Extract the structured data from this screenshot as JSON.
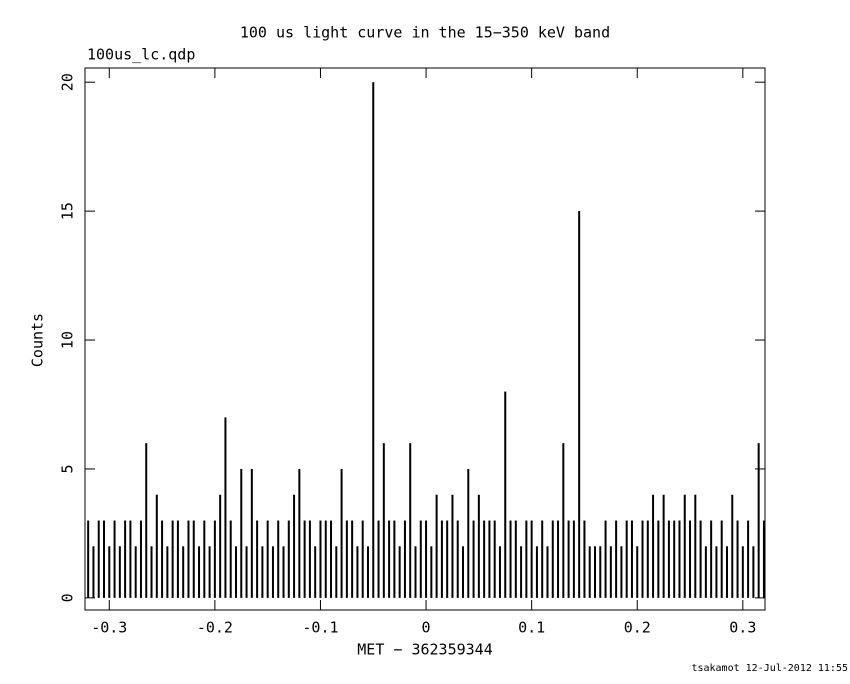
{
  "chart_data": {
    "type": "bar",
    "title": "100 us light curve in the 15−350 keV band",
    "subtitle": "100us_lc.qdp",
    "x_label": "MET − 362359344",
    "y_label": "Counts",
    "footer": "tsakamot 12-Jul-2012 11:55",
    "color": "#000000",
    "xlim": [
      -0.323,
      0.321
    ],
    "ylim": [
      -0.47,
      20.55
    ],
    "xticks": [
      -0.3,
      -0.2,
      -0.1,
      0,
      0.1,
      0.2,
      0.3
    ],
    "yticks": [
      0,
      5,
      10,
      15,
      20
    ],
    "x": [
      -0.32,
      -0.315,
      -0.31,
      -0.305,
      -0.3,
      -0.295,
      -0.29,
      -0.285,
      -0.28,
      -0.275,
      -0.27,
      -0.265,
      -0.26,
      -0.255,
      -0.25,
      -0.245,
      -0.24,
      -0.235,
      -0.23,
      -0.225,
      -0.22,
      -0.215,
      -0.21,
      -0.205,
      -0.2,
      -0.195,
      -0.19,
      -0.185,
      -0.18,
      -0.175,
      -0.17,
      -0.165,
      -0.16,
      -0.155,
      -0.15,
      -0.145,
      -0.14,
      -0.135,
      -0.13,
      -0.125,
      -0.12,
      -0.115,
      -0.11,
      -0.105,
      -0.1,
      -0.095,
      -0.09,
      -0.085,
      -0.08,
      -0.075,
      -0.07,
      -0.065,
      -0.06,
      -0.055,
      -0.05,
      -0.045,
      -0.04,
      -0.035,
      -0.03,
      -0.025,
      -0.02,
      -0.015,
      -0.01,
      -0.005,
      0,
      0.005,
      0.01,
      0.015,
      0.02,
      0.025,
      0.03,
      0.035,
      0.04,
      0.045,
      0.05,
      0.055,
      0.06,
      0.065,
      0.07,
      0.075,
      0.08,
      0.085,
      0.09,
      0.095,
      0.1,
      0.105,
      0.11,
      0.115,
      0.12,
      0.125,
      0.13,
      0.135,
      0.14,
      0.145,
      0.15,
      0.155,
      0.16,
      0.165,
      0.17,
      0.175,
      0.18,
      0.185,
      0.19,
      0.195,
      0.2,
      0.205,
      0.21,
      0.215,
      0.22,
      0.225,
      0.23,
      0.235,
      0.24,
      0.245,
      0.25,
      0.255,
      0.26,
      0.265,
      0.27,
      0.275,
      0.28,
      0.285,
      0.29,
      0.295,
      0.3,
      0.305,
      0.31,
      0.315,
      0.32
    ],
    "values": [
      3,
      2,
      3,
      3,
      2,
      3,
      2,
      3,
      3,
      2,
      3,
      6,
      2,
      4,
      3,
      2,
      3,
      3,
      2,
      3,
      3,
      2,
      3,
      2,
      3,
      4,
      7,
      3,
      2,
      5,
      2,
      5,
      3,
      2,
      3,
      2,
      3,
      2,
      3,
      4,
      5,
      3,
      3,
      2,
      3,
      3,
      3,
      2,
      5,
      3,
      3,
      2,
      3,
      2,
      20,
      3,
      6,
      3,
      3,
      2,
      3,
      6,
      2,
      3,
      3,
      2,
      4,
      3,
      3,
      4,
      3,
      2,
      5,
      3,
      4,
      3,
      3,
      3,
      2,
      8,
      3,
      3,
      2,
      3,
      3,
      2,
      3,
      2,
      3,
      3,
      6,
      3,
      3,
      15,
      3,
      2,
      2,
      2,
      3,
      2,
      3,
      2,
      3,
      3,
      2,
      3,
      3,
      4,
      3,
      4,
      3,
      3,
      3,
      4,
      3,
      4,
      3,
      2,
      3,
      2,
      3,
      2,
      4,
      3,
      2,
      3,
      2,
      6,
      3
    ]
  }
}
